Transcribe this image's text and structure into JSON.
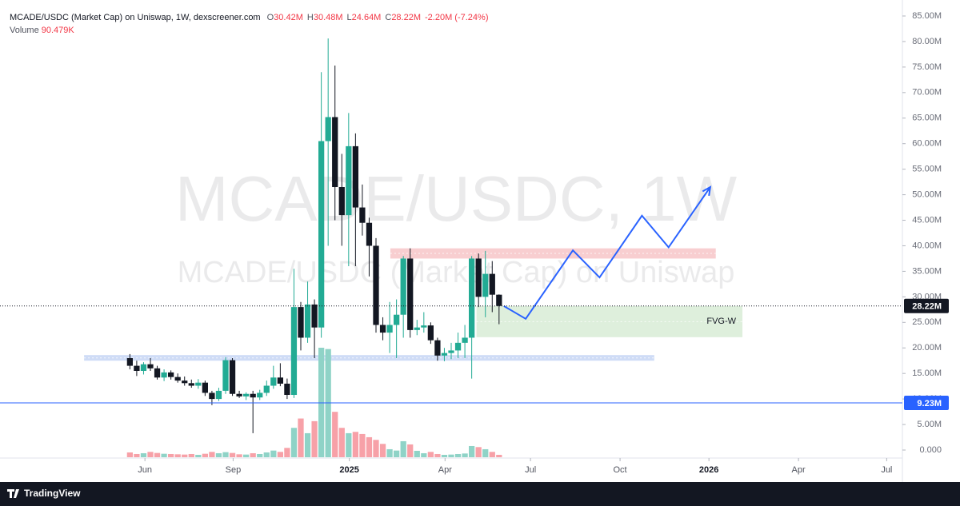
{
  "chart_data": {
    "type": "candlestick",
    "title": "MCADE/USDC (Market Cap) on Uniswap, 1W, dexscreener.com",
    "legend": [
      {
        "key": "O",
        "value": "30.42M"
      },
      {
        "key": "H",
        "value": "30.48M"
      },
      {
        "key": "L",
        "value": "24.64M"
      },
      {
        "key": "C",
        "value": "28.22M"
      }
    ],
    "change": "-2.20M (-7.24%)",
    "volume_name": "Volume",
    "volume_label": "90.479K",
    "watermark": [
      "MCADE/USDC, 1W",
      "MCADE/USDC (Market Cap) on Uniswap"
    ],
    "brand": "TradingView",
    "up_color": "#22ab94",
    "down_color": "#131722",
    "volume_up_color": "#8fd3c7",
    "volume_down_color": "#f7a1a8",
    "x": [
      0,
      1,
      2,
      3,
      4,
      5,
      6,
      7,
      8,
      9,
      10,
      11,
      12,
      13,
      14,
      15,
      16,
      17,
      18,
      19,
      20,
      21,
      22,
      23,
      24,
      25,
      26,
      27,
      28,
      29,
      30,
      31,
      32,
      33,
      34,
      35,
      36,
      37,
      38,
      39,
      40,
      41,
      42,
      43,
      44,
      45,
      46,
      47,
      48,
      49,
      50,
      51,
      52,
      53,
      54
    ],
    "open": [
      18.0,
      16.5,
      15.5,
      16.8,
      16.0,
      14.2,
      15.2,
      14.3,
      13.6,
      13.1,
      12.6,
      13.2,
      11.2,
      10.0,
      11.6,
      17.6,
      11.0,
      10.5,
      11.0,
      10.3,
      11.2,
      12.6,
      14.2,
      13.0,
      10.8,
      28.0,
      22.0,
      28.5,
      24.0,
      60.5,
      65.2,
      51.5,
      46.0,
      59.5,
      47.5,
      44.5,
      40.0,
      24.5,
      23.0,
      24.5,
      26.5,
      37.5,
      23.5,
      24.0,
      24.4,
      21.5,
      18.5,
      19.0,
      19.5,
      21.0,
      22.0,
      37.5,
      30.0,
      34.5,
      30.42
    ],
    "high": [
      18.8,
      17.5,
      17.2,
      18.0,
      16.5,
      15.8,
      15.6,
      15.0,
      14.4,
      13.8,
      13.9,
      13.6,
      11.6,
      12.2,
      18.2,
      18.0,
      11.6,
      11.3,
      11.6,
      11.8,
      13.6,
      16.5,
      17.0,
      14.0,
      35.5,
      29.0,
      33.0,
      29.5,
      74.0,
      80.6,
      75.3,
      58.0,
      66.0,
      62.0,
      52.0,
      45.5,
      41.5,
      26.0,
      29.0,
      29.5,
      38.0,
      39.5,
      25.5,
      27.0,
      25.0,
      22.0,
      20.0,
      21.0,
      23.0,
      24.5,
      38.0,
      38.5,
      39.0,
      37.0,
      30.48
    ],
    "low": [
      15.8,
      14.5,
      14.8,
      15.5,
      13.8,
      13.5,
      13.8,
      13.2,
      12.6,
      12.2,
      12.0,
      10.6,
      8.8,
      9.6,
      11.0,
      10.6,
      10.2,
      9.8,
      3.3,
      9.8,
      10.6,
      12.0,
      12.5,
      10.0,
      10.2,
      19.5,
      21.0,
      18.0,
      22.0,
      40.0,
      45.0,
      40.0,
      36.0,
      36.0,
      42.0,
      34.0,
      23.0,
      21.5,
      19.0,
      18.0,
      22.0,
      22.0,
      22.5,
      23.0,
      20.8,
      17.5,
      17.4,
      17.8,
      18.0,
      18.0,
      14.0,
      28.0,
      26.0,
      27.0,
      24.64
    ],
    "close": [
      16.5,
      15.5,
      16.8,
      16.0,
      14.2,
      15.2,
      14.3,
      13.6,
      13.1,
      12.6,
      13.2,
      11.2,
      10.0,
      11.6,
      17.6,
      11.0,
      10.5,
      11.0,
      10.3,
      11.2,
      12.6,
      14.2,
      13.0,
      10.8,
      28.0,
      22.0,
      28.5,
      24.0,
      60.5,
      65.2,
      51.5,
      46.0,
      59.5,
      47.5,
      44.5,
      40.0,
      24.5,
      23.0,
      24.5,
      26.5,
      37.5,
      23.5,
      24.0,
      24.4,
      21.5,
      18.5,
      19.0,
      19.5,
      21.0,
      22.0,
      37.5,
      30.0,
      34.5,
      30.42,
      28.22
    ],
    "volume": [
      180,
      120,
      150,
      200,
      160,
      130,
      120,
      110,
      100,
      120,
      90,
      130,
      200,
      150,
      190,
      160,
      110,
      100,
      150,
      120,
      180,
      250,
      200,
      350,
      1100,
      1450,
      900,
      1350,
      4100,
      4050,
      1700,
      1100,
      900,
      950,
      870,
      750,
      650,
      500,
      300,
      250,
      600,
      480,
      240,
      150,
      200,
      120,
      90,
      100,
      120,
      140,
      420,
      380,
      300,
      200,
      90.479
    ],
    "xlim": [
      -19,
      113
    ],
    "xticks": [
      {
        "value": 2.2,
        "label": "Jun"
      },
      {
        "value": 15.1,
        "label": "Sep"
      },
      {
        "value": 32.1,
        "label": "2025"
      },
      {
        "value": 46.1,
        "label": "Apr"
      },
      {
        "value": 58.6,
        "label": "Jul"
      },
      {
        "value": 71.7,
        "label": "Oct"
      },
      {
        "value": 84.7,
        "label": "2026"
      },
      {
        "value": 97.8,
        "label": "Apr"
      },
      {
        "value": 110.7,
        "label": "Jul"
      }
    ],
    "ylim": [
      0,
      85
    ],
    "yticks": [
      {
        "value": 0,
        "label": "0.000"
      },
      {
        "value": 5,
        "label": "5.00M"
      },
      {
        "value": 10,
        "label": "10.00M"
      },
      {
        "value": 15,
        "label": "15.00M"
      },
      {
        "value": 20,
        "label": "20.00M"
      },
      {
        "value": 25,
        "label": "25.00M"
      },
      {
        "value": 30,
        "label": "30.00M"
      },
      {
        "value": 35,
        "label": "35.00M"
      },
      {
        "value": 40,
        "label": "40.00M"
      },
      {
        "value": 45,
        "label": "45.00M"
      },
      {
        "value": 50,
        "label": "50.00M"
      },
      {
        "value": 55,
        "label": "55.00M"
      },
      {
        "value": 60,
        "label": "60.00M"
      },
      {
        "value": 65,
        "label": "65.00M"
      },
      {
        "value": 70,
        "label": "70.00M"
      },
      {
        "value": 75,
        "label": "75.00M"
      },
      {
        "value": 80,
        "label": "80.00M"
      },
      {
        "value": 85,
        "label": "85.00M"
      }
    ],
    "price_lines": [
      {
        "value": 28.22,
        "label": "28.22M",
        "color": "#131722",
        "dashed": true
      },
      {
        "value": 9.23,
        "label": "9.23M",
        "color": "#2962ff",
        "dashed": false
      }
    ],
    "zones": [
      {
        "x": [
          38.1,
          85.7
        ],
        "y": [
          37.5,
          39.5
        ],
        "color": "#f7c5c8"
      },
      {
        "x": [
          -6.7,
          76.7
        ],
        "y": [
          17.5,
          18.6
        ],
        "color": "#c7d6f5"
      },
      {
        "x": [
          50.7,
          89.6
        ],
        "y": [
          22.1,
          28.2
        ],
        "color": "#d8ecd6",
        "label": "FVG-W"
      }
    ],
    "projection": {
      "color": "#2962ff",
      "x": [
        54.7,
        57.9,
        64.8,
        68.7,
        74.9,
        78.8,
        84.9
      ],
      "y": [
        28.2,
        25.7,
        39.1,
        33.8,
        45.9,
        39.7,
        51.5
      ]
    }
  }
}
